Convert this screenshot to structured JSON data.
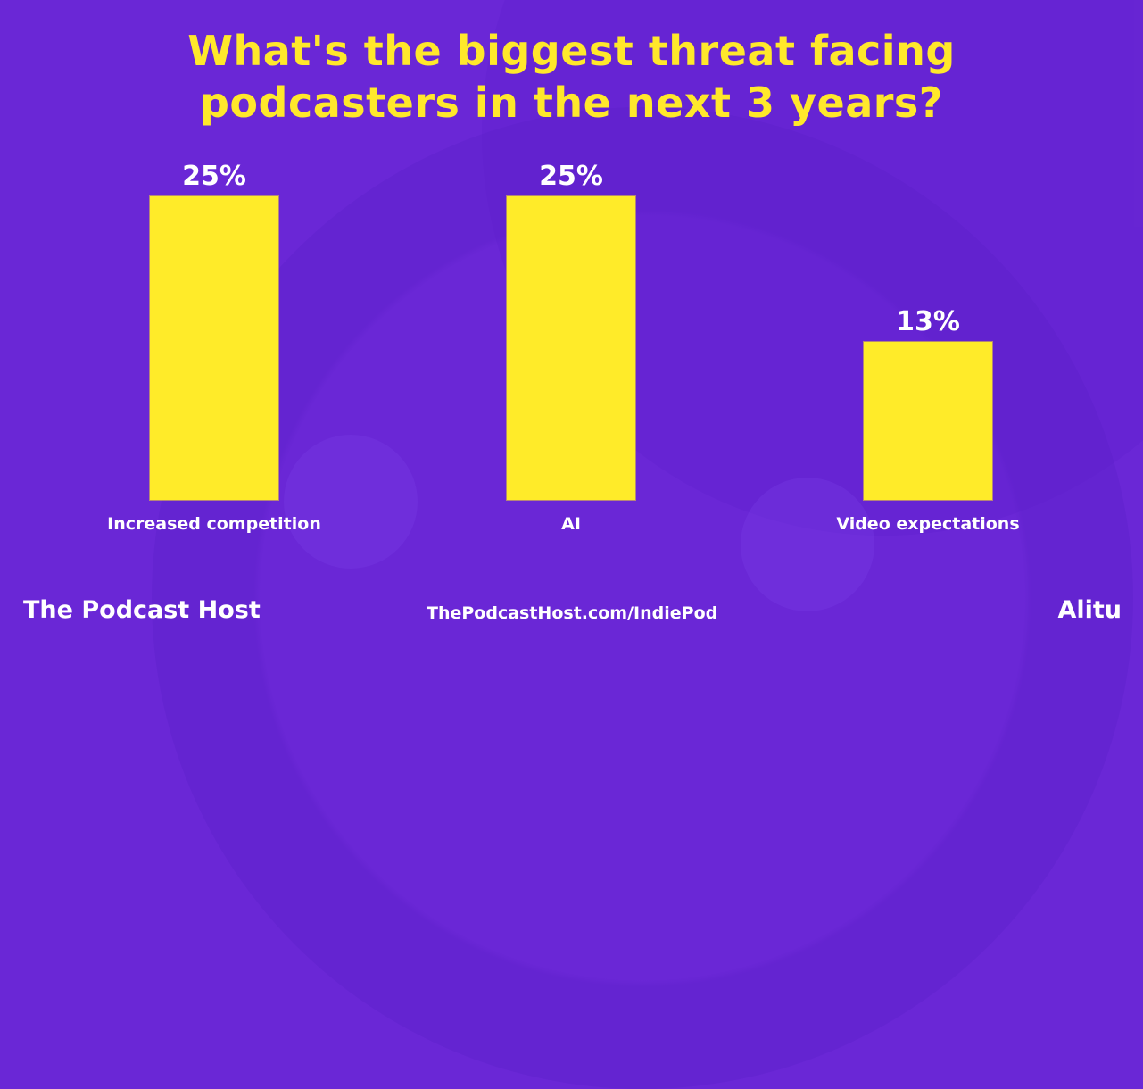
{
  "title": {
    "line1": "What's the biggest threat facing",
    "line2": "podcasters in the next 3 years?"
  },
  "colors": {
    "background": "#6a27d6",
    "title": "#ffe82b",
    "bar": "#ffeb29",
    "text": "#ffffff"
  },
  "bars": [
    {
      "label": "Increased competition",
      "value_label": "25%"
    },
    {
      "label": "AI",
      "value_label": "25%"
    },
    {
      "label": "Video expectations",
      "value_label": "13%"
    }
  ],
  "footer": {
    "brand": "The Podcast Host",
    "url": "ThePodcastHost.com/IndiePod",
    "sponsor": "Alitu"
  },
  "chart_data": {
    "type": "bar",
    "title": "What's the biggest threat facing podcasters in the next 3 years?",
    "categories": [
      "Increased competition",
      "AI",
      "Video expectations"
    ],
    "values": [
      25,
      25,
      13
    ],
    "unit": "%",
    "xlabel": "",
    "ylabel": "",
    "ylim": [
      0,
      25
    ],
    "grid": false,
    "legend": null,
    "data_labels": [
      "25%",
      "25%",
      "13%"
    ]
  }
}
